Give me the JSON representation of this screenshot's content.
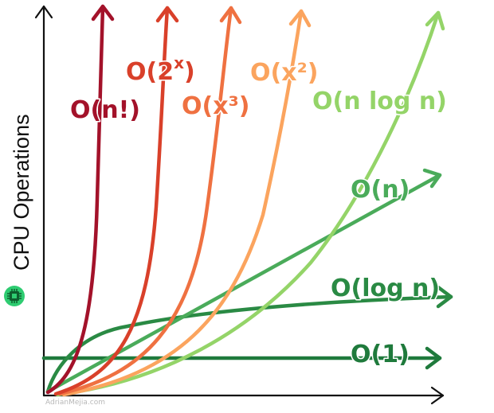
{
  "axes": {
    "y_label": "CPU Operations",
    "x_label": ""
  },
  "watermark": "AdrianMejia.com",
  "icon": {
    "name": "chip-icon",
    "color": "#2ecc71"
  },
  "curves": [
    {
      "key": "factorial",
      "label": "O(n!)",
      "color": "#a3122a"
    },
    {
      "key": "exponential",
      "label": "O(2",
      "sup": "x",
      "label_end": ")",
      "color": "#d9402a"
    },
    {
      "key": "cubic",
      "label": "O(x³)",
      "color": "#ef7141"
    },
    {
      "key": "quadratic",
      "label": "O(x²)",
      "color": "#fba45e"
    },
    {
      "key": "linearithmic",
      "label": "O(n log n)",
      "color": "#94d468"
    },
    {
      "key": "linear",
      "label": "O(n)",
      "color": "#4aab5a"
    },
    {
      "key": "logarithmic",
      "label": "O(log n)",
      "color": "#2a8a44"
    },
    {
      "key": "constant",
      "label": "O(1)",
      "color": "#1f7a3c"
    }
  ]
}
